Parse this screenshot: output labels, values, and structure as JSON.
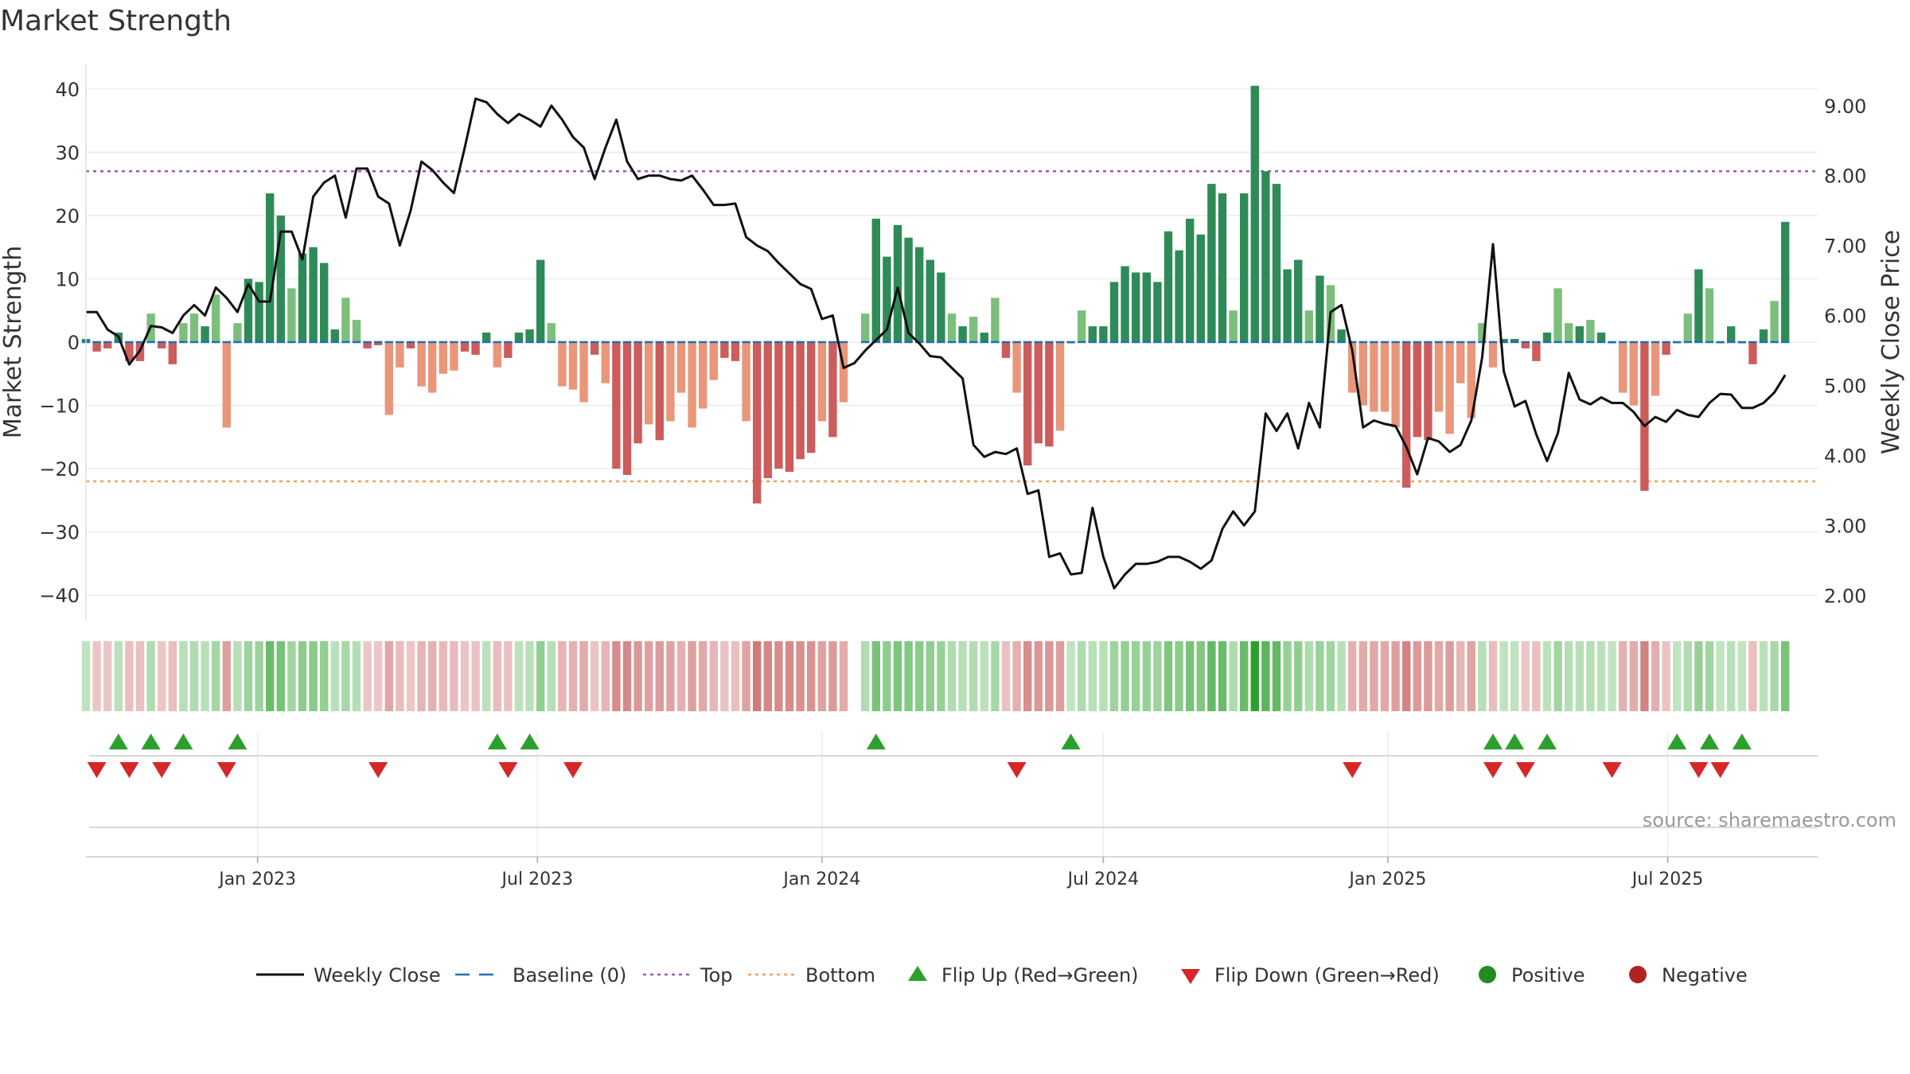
{
  "chart_data": {
    "type": "bar+line",
    "title": "Market Strength",
    "ylabel_left": "Market Strength",
    "ylabel_right": "Weekly Close Price",
    "ylim_left": [
      -44,
      44
    ],
    "ylim_right": [
      1.64,
      9.6
    ],
    "yticks_left": [
      {
        "value": 40,
        "label": "40"
      },
      {
        "value": 30,
        "label": "30"
      },
      {
        "value": 20,
        "label": "20"
      },
      {
        "value": 10,
        "label": "10"
      },
      {
        "value": 0,
        "label": "0"
      },
      {
        "value": -10,
        "label": "−10"
      },
      {
        "value": -20,
        "label": "−20"
      },
      {
        "value": -30,
        "label": "−30"
      },
      {
        "value": -40,
        "label": "−40"
      }
    ],
    "yticks_right": [
      {
        "value": 9,
        "label": "9.00"
      },
      {
        "value": 8,
        "label": "8.00"
      },
      {
        "value": 7,
        "label": "7.00"
      },
      {
        "value": 6,
        "label": "6.00"
      },
      {
        "value": 5,
        "label": "5.00"
      },
      {
        "value": 4,
        "label": "4.00"
      },
      {
        "value": 3,
        "label": "3.00"
      },
      {
        "value": 2,
        "label": "2.00"
      }
    ],
    "x_start": "2022-09-12",
    "x_end": "2025-10-06",
    "xticks": [
      {
        "date": "2023-01-01",
        "label": "Jan 2023"
      },
      {
        "date": "2023-07-01",
        "label": "Jul 2023"
      },
      {
        "date": "2024-01-01",
        "label": "Jan 2024"
      },
      {
        "date": "2024-07-01",
        "label": "Jul 2024"
      },
      {
        "date": "2025-01-01",
        "label": "Jan 2025"
      },
      {
        "date": "2025-07-01",
        "label": "Jul 2025"
      }
    ],
    "top_line": 27,
    "bottom_line": -22,
    "strength": [
      0.5,
      -1.5,
      -1,
      1.5,
      -3,
      -3,
      4.5,
      -1,
      -3.5,
      3,
      4.5,
      2.5,
      7.5,
      -13.5,
      3,
      10,
      9.5,
      23.5,
      20,
      8.5,
      14,
      15,
      12.5,
      2,
      7,
      3.5,
      -1,
      -0.5,
      -11.5,
      -4,
      -1,
      -7,
      -8,
      -5,
      -4.5,
      -1.5,
      -2,
      1.5,
      -4,
      -2.5,
      1.5,
      2,
      13,
      3,
      -7,
      -7.5,
      -9.5,
      -2,
      -6.5,
      -20,
      -21,
      -16,
      -13,
      -15.5,
      -12.5,
      -8,
      -13.5,
      -10.5,
      -6,
      -2.5,
      -3,
      -12.5,
      -25.5,
      -21.5,
      -20,
      -20.5,
      -18.5,
      -17.5,
      -12.5,
      -15,
      -9.5,
      null,
      4.5,
      19.5,
      13.5,
      18.5,
      16.5,
      15,
      13,
      11,
      4.5,
      2.5,
      4,
      1.5,
      7,
      -2.5,
      -8,
      -19.5,
      -16,
      -16.5,
      -14,
      0,
      5,
      2.5,
      2.5,
      9.5,
      12,
      11,
      11,
      9.5,
      17.5,
      14.5,
      19.5,
      17,
      25,
      23.5,
      5,
      23.5,
      40.5,
      27,
      25,
      11.5,
      13,
      5,
      10.5,
      9,
      2,
      -8,
      -10,
      -11,
      -11,
      -13.5,
      -23,
      -15,
      -15.5,
      -11,
      -14.5,
      -6.5,
      -12,
      3,
      -4,
      0.5,
      0.5,
      -1,
      -3,
      1.5,
      8.5,
      3,
      2.5,
      3.5,
      1.5,
      0,
      -8,
      -10,
      -23.5,
      -8.5,
      -2,
      0,
      4.5,
      11.5,
      8.5,
      0,
      2.5,
      0,
      -3.5,
      2,
      6.5,
      19
    ],
    "weekly_close": [
      6.05,
      6.05,
      5.8,
      5.7,
      5.3,
      5.5,
      5.85,
      5.83,
      5.75,
      6.0,
      6.15,
      6.0,
      6.4,
      6.25,
      6.05,
      6.45,
      6.2,
      6.2,
      7.2,
      7.2,
      6.8,
      7.7,
      7.9,
      8.0,
      7.4,
      8.1,
      8.1,
      7.7,
      7.6,
      7.0,
      7.5,
      8.2,
      8.08,
      7.9,
      7.75,
      8.4,
      9.1,
      9.05,
      8.88,
      8.75,
      8.88,
      8.8,
      8.7,
      9.0,
      8.8,
      8.55,
      8.4,
      7.95,
      8.4,
      8.8,
      8.2,
      7.95,
      8.0,
      8.0,
      7.95,
      7.93,
      8.0,
      7.8,
      7.58,
      7.58,
      7.6,
      7.12,
      7.0,
      6.92,
      6.75,
      6.6,
      6.45,
      6.38,
      5.95,
      6.0,
      5.25,
      5.32,
      5.5,
      5.65,
      5.8,
      6.4,
      5.75,
      5.6,
      5.42,
      5.4,
      5.25,
      5.1,
      4.15,
      3.98,
      4.05,
      4.02,
      4.1,
      3.45,
      3.5,
      2.55,
      2.6,
      2.3,
      2.32,
      3.25,
      2.55,
      2.1,
      2.3,
      2.45,
      2.45,
      2.48,
      2.55,
      2.55,
      2.48,
      2.38,
      2.5,
      2.95,
      3.2,
      3.0,
      3.2,
      4.6,
      4.35,
      4.6,
      4.1,
      4.75,
      4.4,
      6.05,
      6.15,
      5.5,
      4.4,
      4.5,
      4.45,
      4.42,
      4.12,
      3.73,
      4.25,
      4.2,
      4.05,
      4.15,
      4.5,
      5.4,
      7.02,
      5.2,
      4.7,
      4.78,
      4.3,
      3.92,
      4.32,
      5.18,
      4.8,
      4.73,
      4.83,
      4.75,
      4.75,
      4.62,
      4.42,
      4.55,
      4.48,
      4.65,
      4.58,
      4.55,
      4.75,
      4.88,
      4.87,
      4.68,
      4.68,
      4.75,
      4.9,
      5.15
    ],
    "flip_up_weeks": [
      3,
      6,
      9,
      14,
      38,
      41,
      73,
      91,
      130,
      132,
      135,
      147,
      150,
      153
    ],
    "flip_down_weeks": [
      1,
      4,
      7,
      13,
      27,
      39,
      45,
      86,
      117,
      130,
      133,
      141,
      149,
      151
    ],
    "legend": [
      {
        "label": "Weekly Close",
        "kind": "solid",
        "color": "#111111"
      },
      {
        "label": "Baseline (0)",
        "kind": "dash",
        "color": "#1f6fb4"
      },
      {
        "label": "Top",
        "kind": "dot",
        "color": "#9b59b6"
      },
      {
        "label": "Bottom",
        "kind": "dot",
        "color": "#f0a060"
      },
      {
        "label": "Flip Up (Red→Green)",
        "kind": "tri-up",
        "color": "#2ca02c"
      },
      {
        "label": "Flip Down (Green→Red)",
        "kind": "tri-down",
        "color": "#d62728"
      },
      {
        "label": "Positive",
        "kind": "circle",
        "color": "#228b22"
      },
      {
        "label": "Negative",
        "kind": "circle",
        "color": "#b22222"
      }
    ],
    "source": "source: sharemaestro.com"
  }
}
